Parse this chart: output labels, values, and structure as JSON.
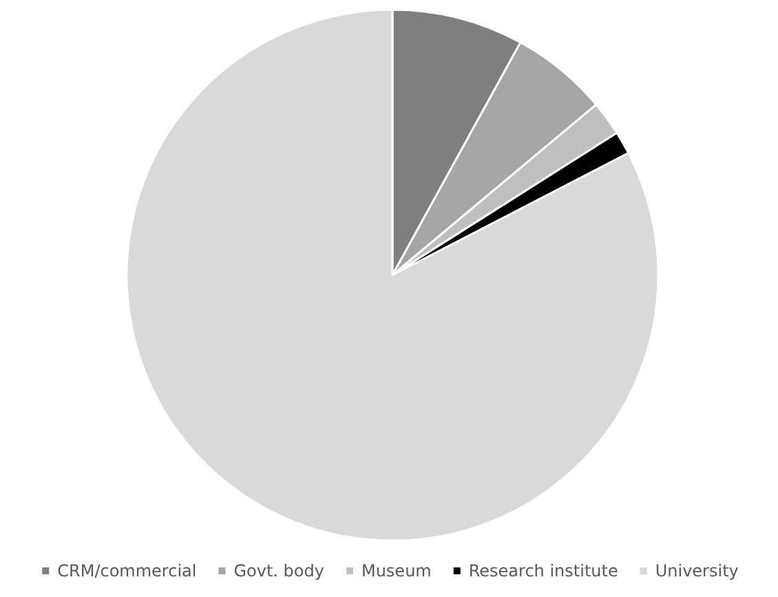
{
  "chart_data": {
    "type": "pie",
    "categories": [
      "CRM/commercial",
      "Govt. body",
      "Museum",
      "Research institute",
      "University"
    ],
    "values": [
      8.0,
      5.9,
      2.1,
      1.4,
      82.6
    ],
    "colors": [
      "#7f7f7f",
      "#a5a5a5",
      "#bfbfbf",
      "#000000",
      "#d9d9d9"
    ],
    "legend": "bottom"
  }
}
